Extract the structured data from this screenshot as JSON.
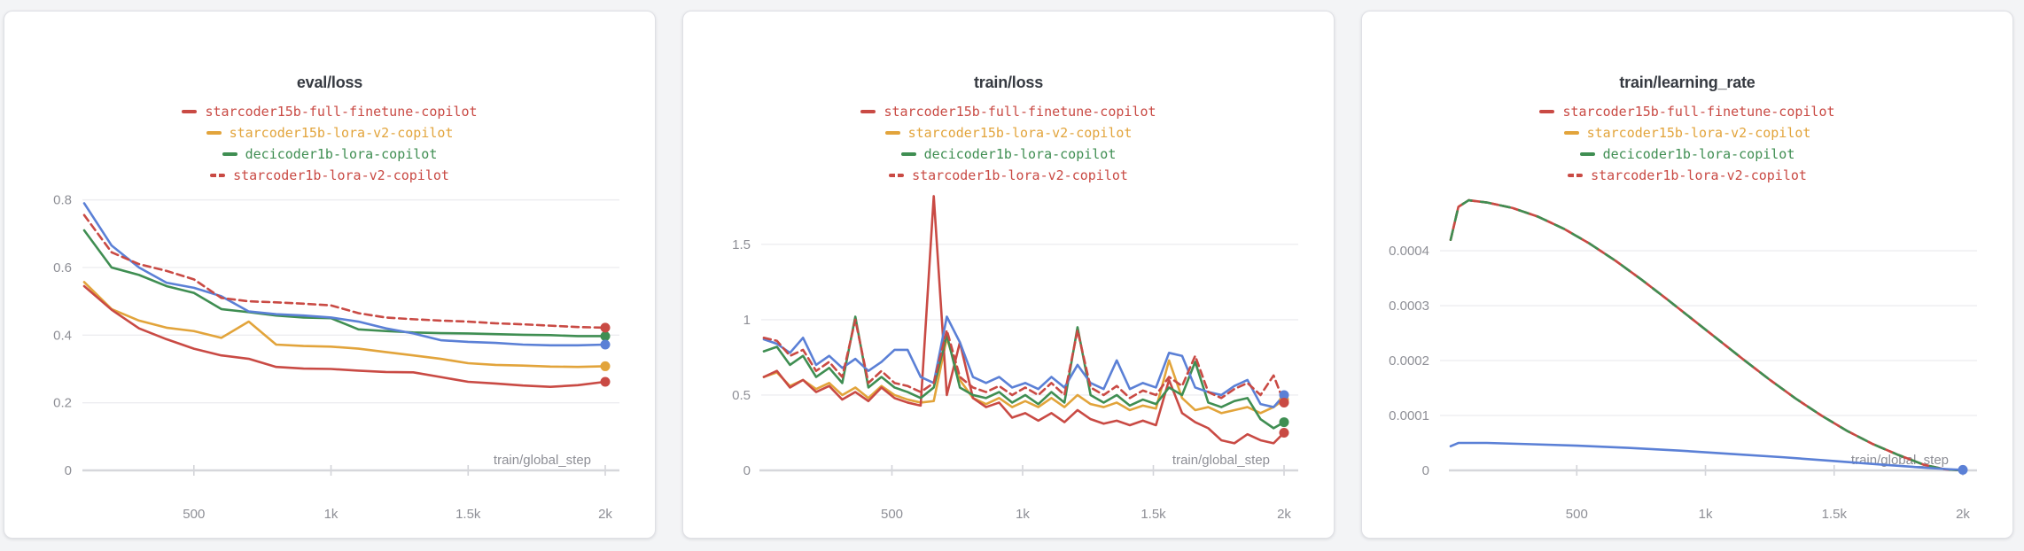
{
  "app": {
    "background": "#f3f4f6",
    "panel_background": "#ffffff",
    "panel_border": "#dfe0e5",
    "grid_color": "#ededf0",
    "baseline_color": "#d6d7db",
    "tick_text_color": "#8e8f96",
    "title_color": "#363a41"
  },
  "run_colors": {
    "starcoder15b-full-finetune-copilot": "#c94a44",
    "starcoder15b-lora-v2-copilot": "#e2a43b",
    "decicoder1b-lora-copilot": "#3f8e52",
    "starcoder1b-lora-v2-copilot": "#c94a44",
    "unlabeled-run": "#5b80d6"
  },
  "chart_data": [
    {
      "type": "line",
      "title": "eval/loss",
      "xlabel": "train/global_step",
      "xlim": [
        100,
        2000
      ],
      "ylim": [
        0,
        0.82
      ],
      "grid": "horizontal",
      "legend_position": "top-center",
      "xticks": [
        {
          "v": 500,
          "label": "500"
        },
        {
          "v": 1000,
          "label": "1k"
        },
        {
          "v": 1500,
          "label": "1.5k"
        },
        {
          "v": 2000,
          "label": "2k"
        }
      ],
      "yticks": [
        {
          "v": 0,
          "label": "0"
        },
        {
          "v": 0.2,
          "label": "0.2"
        },
        {
          "v": 0.4,
          "label": "0.4"
        },
        {
          "v": 0.6,
          "label": "0.6"
        },
        {
          "v": 0.8,
          "label": "0.8"
        }
      ],
      "legend": [
        {
          "label": "starcoder15b-full-finetune-copilot",
          "color": "#c94a44",
          "dash": false
        },
        {
          "label": "starcoder15b-lora-v2-copilot",
          "color": "#e2a43b",
          "dash": false
        },
        {
          "label": "decicoder1b-lora-copilot",
          "color": "#3f8e52",
          "dash": false
        },
        {
          "label": "starcoder1b-lora-v2-copilot",
          "color": "#c94a44",
          "dash": true
        }
      ],
      "x": [
        100,
        200,
        300,
        400,
        500,
        600,
        700,
        800,
        900,
        1000,
        1100,
        1200,
        1300,
        1400,
        1500,
        1600,
        1700,
        1800,
        1900,
        2000
      ],
      "series": [
        {
          "name": "starcoder15b-lora-v2-copilot",
          "color": "#e2a43b",
          "dash": false,
          "end_dot": true,
          "y": [
            0.557,
            0.477,
            0.443,
            0.422,
            0.412,
            0.392,
            0.44,
            0.372,
            0.368,
            0.366,
            0.36,
            0.35,
            0.34,
            0.33,
            0.317,
            0.312,
            0.31,
            0.307,
            0.306,
            0.308
          ]
        },
        {
          "name": "starcoder15b-full-finetune-copilot",
          "color": "#c94a44",
          "dash": false,
          "end_dot": true,
          "y": [
            0.545,
            0.475,
            0.42,
            0.388,
            0.36,
            0.34,
            0.33,
            0.306,
            0.301,
            0.3,
            0.295,
            0.291,
            0.29,
            0.276,
            0.262,
            0.257,
            0.251,
            0.247,
            0.252,
            0.262
          ]
        },
        {
          "name": "decicoder1b-lora-copilot",
          "color": "#3f8e52",
          "dash": false,
          "end_dot": true,
          "y": [
            0.71,
            0.6,
            0.578,
            0.545,
            0.525,
            0.477,
            0.468,
            0.458,
            0.452,
            0.45,
            0.417,
            0.412,
            0.408,
            0.406,
            0.405,
            0.403,
            0.401,
            0.4,
            0.397,
            0.397
          ]
        },
        {
          "name": "",
          "color": "#5b80d6",
          "dash": false,
          "end_dot": true,
          "y": [
            0.79,
            0.665,
            0.6,
            0.555,
            0.54,
            0.515,
            0.47,
            0.462,
            0.458,
            0.452,
            0.44,
            0.42,
            0.405,
            0.385,
            0.38,
            0.377,
            0.372,
            0.37,
            0.37,
            0.372
          ]
        },
        {
          "name": "starcoder1b-lora-v2-copilot",
          "color": "#c94a44",
          "dash": true,
          "end_dot": true,
          "y": [
            0.755,
            0.645,
            0.61,
            0.59,
            0.565,
            0.51,
            0.5,
            0.497,
            0.493,
            0.488,
            0.465,
            0.452,
            0.447,
            0.443,
            0.44,
            0.435,
            0.432,
            0.428,
            0.424,
            0.422
          ]
        }
      ]
    },
    {
      "type": "line",
      "title": "train/loss",
      "xlabel": "train/global_step",
      "xlim": [
        0,
        2000
      ],
      "ylim": [
        0,
        1.84
      ],
      "grid": "horizontal",
      "legend_position": "top-center",
      "xticks": [
        {
          "v": 500,
          "label": "500"
        },
        {
          "v": 1000,
          "label": "1k"
        },
        {
          "v": 1500,
          "label": "1.5k"
        },
        {
          "v": 2000,
          "label": "2k"
        }
      ],
      "yticks": [
        {
          "v": 0,
          "label": "0"
        },
        {
          "v": 0.5,
          "label": "0.5"
        },
        {
          "v": 1,
          "label": "1"
        },
        {
          "v": 1.5,
          "label": "1.5"
        }
      ],
      "legend": [
        {
          "label": "starcoder15b-full-finetune-copilot",
          "color": "#c94a44",
          "dash": false
        },
        {
          "label": "starcoder15b-lora-v2-copilot",
          "color": "#e2a43b",
          "dash": false
        },
        {
          "label": "decicoder1b-lora-copilot",
          "color": "#3f8e52",
          "dash": false
        },
        {
          "label": "starcoder1b-lora-v2-copilot",
          "color": "#c94a44",
          "dash": true
        }
      ],
      "x": [
        10,
        60,
        110,
        160,
        210,
        260,
        310,
        360,
        410,
        460,
        510,
        560,
        610,
        660,
        710,
        760,
        810,
        860,
        910,
        960,
        1010,
        1060,
        1110,
        1160,
        1210,
        1260,
        1310,
        1360,
        1410,
        1460,
        1510,
        1560,
        1610,
        1660,
        1710,
        1760,
        1810,
        1860,
        1910,
        1960,
        2000
      ],
      "series": [
        {
          "name": "starcoder15b-lora-v2-copilot",
          "color": "#e2a43b",
          "dash": false,
          "end_dot": true,
          "y": [
            0.62,
            0.65,
            0.56,
            0.6,
            0.54,
            0.58,
            0.5,
            0.55,
            0.48,
            0.56,
            0.5,
            0.47,
            0.45,
            0.46,
            0.88,
            0.6,
            0.48,
            0.44,
            0.48,
            0.42,
            0.46,
            0.42,
            0.48,
            0.42,
            0.5,
            0.44,
            0.42,
            0.45,
            0.4,
            0.43,
            0.41,
            0.73,
            0.48,
            0.4,
            0.42,
            0.38,
            0.4,
            0.42,
            0.38,
            0.42,
            0.47
          ]
        },
        {
          "name": "starcoder15b-full-finetune-copilot",
          "color": "#c94a44",
          "dash": false,
          "end_dot": true,
          "y": [
            0.62,
            0.66,
            0.55,
            0.6,
            0.52,
            0.56,
            0.47,
            0.52,
            0.46,
            0.55,
            0.48,
            0.45,
            0.43,
            1.82,
            0.5,
            0.85,
            0.48,
            0.42,
            0.45,
            0.35,
            0.38,
            0.33,
            0.38,
            0.32,
            0.4,
            0.34,
            0.31,
            0.33,
            0.3,
            0.33,
            0.3,
            0.6,
            0.38,
            0.32,
            0.28,
            0.2,
            0.18,
            0.24,
            0.2,
            0.18,
            0.25
          ]
        },
        {
          "name": "decicoder1b-lora-copilot",
          "color": "#3f8e52",
          "dash": false,
          "end_dot": true,
          "y": [
            0.79,
            0.82,
            0.7,
            0.76,
            0.62,
            0.68,
            0.58,
            1.02,
            0.55,
            0.62,
            0.55,
            0.52,
            0.48,
            0.55,
            0.9,
            0.55,
            0.5,
            0.48,
            0.52,
            0.45,
            0.5,
            0.44,
            0.52,
            0.45,
            0.95,
            0.5,
            0.45,
            0.5,
            0.43,
            0.47,
            0.44,
            0.55,
            0.5,
            0.72,
            0.45,
            0.42,
            0.46,
            0.48,
            0.34,
            0.28,
            0.32
          ]
        },
        {
          "name": "",
          "color": "#5b80d6",
          "dash": false,
          "end_dot": true,
          "y": [
            0.87,
            0.84,
            0.78,
            0.88,
            0.7,
            0.76,
            0.68,
            0.74,
            0.66,
            0.72,
            0.8,
            0.8,
            0.62,
            0.58,
            1.02,
            0.85,
            0.62,
            0.58,
            0.62,
            0.55,
            0.58,
            0.54,
            0.62,
            0.55,
            0.7,
            0.58,
            0.54,
            0.73,
            0.54,
            0.58,
            0.55,
            0.78,
            0.76,
            0.55,
            0.52,
            0.5,
            0.56,
            0.6,
            0.44,
            0.42,
            0.5
          ]
        },
        {
          "name": "starcoder1b-lora-v2-copilot",
          "color": "#c94a44",
          "dash": true,
          "end_dot": true,
          "y": [
            0.88,
            0.86,
            0.76,
            0.8,
            0.66,
            0.72,
            0.62,
            1.0,
            0.58,
            0.66,
            0.58,
            0.56,
            0.52,
            0.58,
            0.93,
            0.62,
            0.55,
            0.52,
            0.56,
            0.5,
            0.55,
            0.5,
            0.58,
            0.5,
            0.93,
            0.55,
            0.5,
            0.56,
            0.48,
            0.53,
            0.5,
            0.62,
            0.56,
            0.76,
            0.52,
            0.48,
            0.54,
            0.58,
            0.5,
            0.63,
            0.45
          ]
        }
      ]
    },
    {
      "type": "line",
      "title": "train/learning_rate",
      "xlabel": "train/global_step",
      "xlim": [
        10,
        2000
      ],
      "ylim": [
        0,
        0.000505
      ],
      "grid": "horizontal",
      "legend_position": "top-center",
      "xticks": [
        {
          "v": 500,
          "label": "500"
        },
        {
          "v": 1000,
          "label": "1k"
        },
        {
          "v": 1500,
          "label": "1.5k"
        },
        {
          "v": 2000,
          "label": "2k"
        }
      ],
      "yticks": [
        {
          "v": 0,
          "label": "0"
        },
        {
          "v": 0.0001,
          "label": "0.0001"
        },
        {
          "v": 0.0002,
          "label": "0.0002"
        },
        {
          "v": 0.0003,
          "label": "0.0003"
        },
        {
          "v": 0.0004,
          "label": "0.0004"
        }
      ],
      "legend": [
        {
          "label": "starcoder15b-full-finetune-copilot",
          "color": "#c94a44",
          "dash": false
        },
        {
          "label": "starcoder15b-lora-v2-copilot",
          "color": "#e2a43b",
          "dash": false
        },
        {
          "label": "decicoder1b-lora-copilot",
          "color": "#3f8e52",
          "dash": false
        },
        {
          "label": "starcoder1b-lora-v2-copilot",
          "color": "#c94a44",
          "dash": true
        }
      ],
      "series": [
        {
          "name": "starcoder15b-full-finetune-copilot",
          "color": "#c94a44",
          "dash": false,
          "end_dot": false,
          "x": [
            10,
            40,
            80,
            150,
            250,
            350,
            450,
            550,
            650,
            750,
            850,
            950,
            1050,
            1150,
            1250,
            1350,
            1450,
            1550,
            1650,
            1750,
            1850,
            1930,
            2000
          ],
          "y": [
            0.00042,
            0.00048,
            0.000492,
            0.000488,
            0.000478,
            0.000462,
            0.00044,
            0.000413,
            0.000382,
            0.000348,
            0.000312,
            0.000275,
            0.000238,
            0.000201,
            0.000165,
            0.000131,
            0.0001,
            7.2e-05,
            4.8e-05,
            2.8e-05,
            1e-05,
            2e-06,
            0
          ]
        },
        {
          "name": "starcoder1b-lora-v2-copilot",
          "color": "#c94a44",
          "dash": true,
          "dasharray": "7 6",
          "end_dot": false,
          "x": [
            10,
            40,
            80,
            150,
            250,
            350,
            450,
            550,
            650,
            750,
            850,
            950,
            1050,
            1150,
            1250,
            1350,
            1450,
            1550,
            1650,
            1750,
            1850,
            1930,
            2000
          ],
          "y": [
            0.00042,
            0.00048,
            0.000492,
            0.000488,
            0.000478,
            0.000462,
            0.00044,
            0.000413,
            0.000382,
            0.000348,
            0.000312,
            0.000275,
            0.000238,
            0.000201,
            0.000165,
            0.000131,
            0.0001,
            7.2e-05,
            4.8e-05,
            2.8e-05,
            1e-05,
            2e-06,
            0
          ]
        },
        {
          "name": "decicoder1b-lora-copilot",
          "color": "#3f8e52",
          "dash": true,
          "dasharray": "11 11",
          "end_dot": false,
          "x": [
            10,
            40,
            80,
            150,
            250,
            350,
            450,
            550,
            650,
            750,
            850,
            950,
            1050,
            1150,
            1250,
            1350,
            1450,
            1550,
            1650,
            1750,
            1850,
            1930,
            2000
          ],
          "y": [
            0.00042,
            0.00048,
            0.000492,
            0.000488,
            0.000478,
            0.000462,
            0.00044,
            0.000413,
            0.000382,
            0.000348,
            0.000312,
            0.000275,
            0.000238,
            0.000201,
            0.000165,
            0.000131,
            0.0001,
            7.2e-05,
            4.8e-05,
            2.8e-05,
            1e-05,
            2e-06,
            0
          ]
        },
        {
          "name": "",
          "color": "#5b80d6",
          "dash": false,
          "end_dot": true,
          "x": [
            10,
            40,
            150,
            300,
            500,
            700,
            900,
            1100,
            1300,
            1500,
            1700,
            1850,
            1950,
            2000
          ],
          "y": [
            4.4e-05,
            5e-05,
            5e-05,
            4.8e-05,
            4.5e-05,
            4.1e-05,
            3.6e-05,
            3e-05,
            2.4e-05,
            1.7e-05,
            1e-05,
            5e-06,
            2e-06,
            1e-06
          ]
        }
      ]
    }
  ]
}
